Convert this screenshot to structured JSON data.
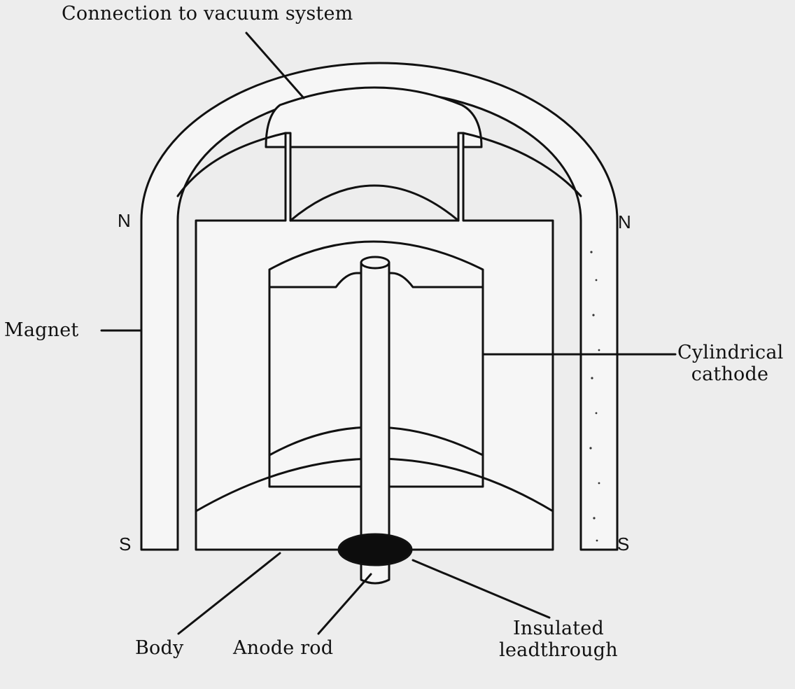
{
  "labels": {
    "vacuum": "Connection to vacuum system",
    "magnet": "Magnet",
    "cathode_line1": "Cylindrical",
    "cathode_line2": "cathode",
    "body": "Body",
    "anode": "Anode rod",
    "leadthrough_line1": "Insulated",
    "leadthrough_line2": "leadthrough"
  },
  "poles": {
    "north_left": "N",
    "north_right": "N",
    "south_left": "S",
    "south_right": "S"
  },
  "colors": {
    "ink": "#111111",
    "paper": "#ededed",
    "fill": "#f6f6f6"
  }
}
